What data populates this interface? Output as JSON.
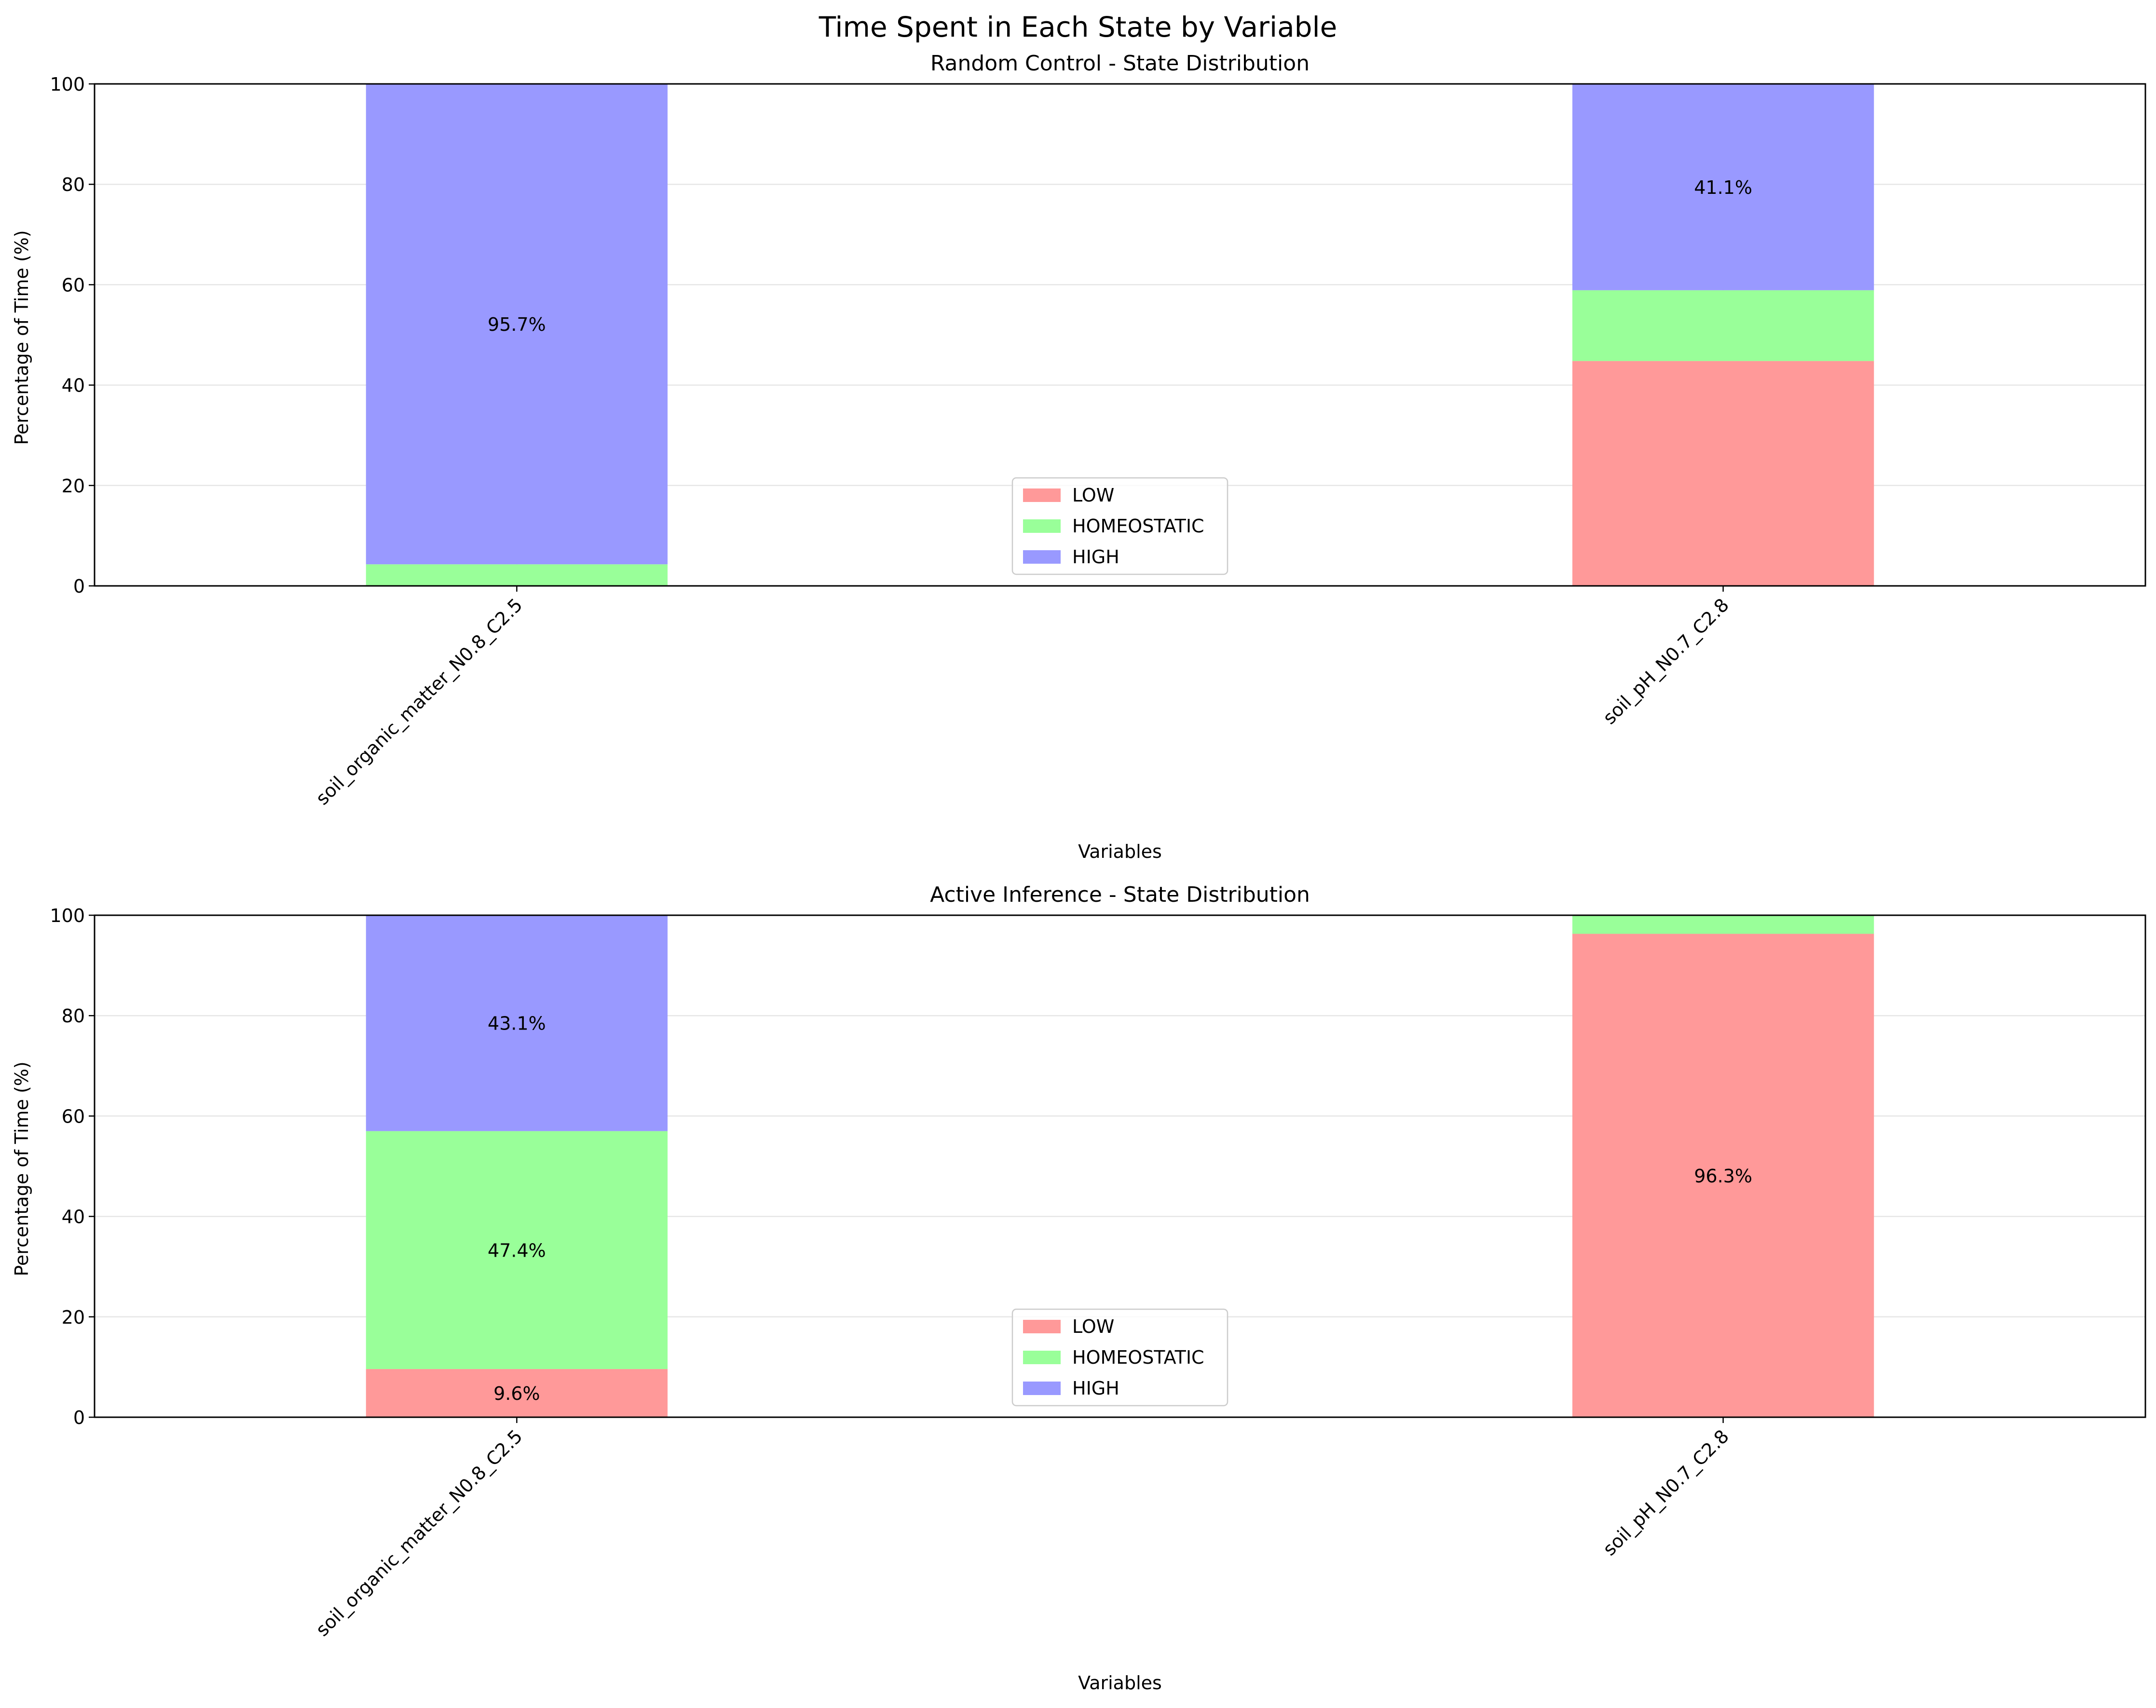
{
  "figure": {
    "suptitle": "Time Spent in Each State by Variable"
  },
  "colors": {
    "LOW": "#ff9999",
    "HOMEOSTATIC": "#99ff99",
    "HIGH": "#9999ff",
    "grid": "#e6e6e6",
    "axis": "#000000",
    "legend_border": "#cccccc"
  },
  "chart_data": [
    {
      "type": "bar",
      "stacked": true,
      "title": "Random Control - State Distribution",
      "xlabel": "Variables",
      "ylabel": "Percentage of Time (%)",
      "ylim": [
        0,
        100
      ],
      "yticks": [
        0,
        20,
        40,
        60,
        80,
        100
      ],
      "grid": true,
      "legend_position": "lower center",
      "categories": [
        "soil_organic_matter_N0.8_C2.5",
        "soil_pH_N0.7_C2.8"
      ],
      "series": [
        {
          "name": "LOW",
          "values": [
            0.0,
            44.8
          ]
        },
        {
          "name": "HOMEOSTATIC",
          "values": [
            4.3,
            14.1
          ]
        },
        {
          "name": "HIGH",
          "values": [
            95.7,
            41.1
          ]
        }
      ],
      "data_labels": [
        {
          "category": "soil_organic_matter_N0.8_C2.5",
          "series": "HIGH",
          "text": "95.7%"
        },
        {
          "category": "soil_pH_N0.7_C2.8",
          "series": "HIGH",
          "text": "41.1%"
        }
      ]
    },
    {
      "type": "bar",
      "stacked": true,
      "title": "Active Inference - State Distribution",
      "xlabel": "Variables",
      "ylabel": "Percentage of Time (%)",
      "ylim": [
        0,
        100
      ],
      "yticks": [
        0,
        20,
        40,
        60,
        80,
        100
      ],
      "grid": true,
      "legend_position": "lower center",
      "categories": [
        "soil_organic_matter_N0.8_C2.5",
        "soil_pH_N0.7_C2.8"
      ],
      "series": [
        {
          "name": "LOW",
          "values": [
            9.6,
            96.3
          ]
        },
        {
          "name": "HOMEOSTATIC",
          "values": [
            47.4,
            3.7
          ]
        },
        {
          "name": "HIGH",
          "values": [
            43.1,
            0.0
          ]
        }
      ],
      "data_labels": [
        {
          "category": "soil_organic_matter_N0.8_C2.5",
          "series": "LOW",
          "text": "9.6%"
        },
        {
          "category": "soil_organic_matter_N0.8_C2.5",
          "series": "HOMEOSTATIC",
          "text": "47.4%"
        },
        {
          "category": "soil_organic_matter_N0.8_C2.5",
          "series": "HIGH",
          "text": "43.1%"
        },
        {
          "category": "soil_pH_N0.7_C2.8",
          "series": "LOW",
          "text": "96.3%"
        }
      ]
    }
  ]
}
